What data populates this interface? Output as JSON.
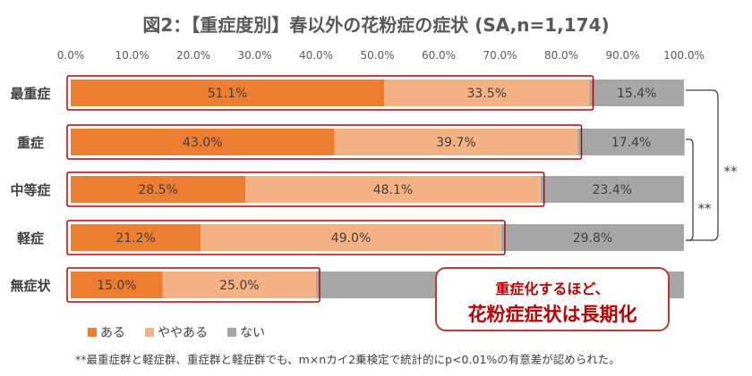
{
  "title": "図2：【重症度別】春以外の花粉症の症状 (SA,n=1,174)",
  "chart_data": {
    "type": "bar",
    "orientation": "horizontal",
    "stacked": true,
    "percent_stacked": true,
    "categories": [
      "最重症",
      "重症",
      "中等症",
      "軽症",
      "無症状"
    ],
    "series": [
      {
        "name": "ある",
        "color": "#ed7d31",
        "values": [
          51.1,
          43.0,
          28.5,
          21.2,
          15.0
        ],
        "labels": [
          "51.1%",
          "43.0%",
          "28.5%",
          "21.2%",
          "15.0%"
        ]
      },
      {
        "name": "ややある",
        "color": "#f4b183",
        "values": [
          33.5,
          39.7,
          48.1,
          49.0,
          25.0
        ],
        "labels": [
          "33.5%",
          "39.7%",
          "48.1%",
          "49.0%",
          "25.0%"
        ]
      },
      {
        "name": "ない",
        "color": "#a6a6a6",
        "values": [
          15.4,
          17.4,
          23.4,
          29.8,
          60.0
        ],
        "labels": [
          "15.4%",
          "17.4%",
          "23.4%",
          "29.8%",
          "60.0%"
        ]
      }
    ],
    "xlim": [
      0,
      100
    ],
    "xticks": [
      "0.0%",
      "10.0%",
      "20.0%",
      "30.0%",
      "40.0%",
      "50.0%",
      "60.0%",
      "70.0%",
      "80.0%",
      "90.0%",
      "100.0%"
    ],
    "highlight_color": "#c00000",
    "significance": [
      {
        "from": "最重症",
        "to": "軽症",
        "label": "**"
      },
      {
        "from": "重症",
        "to": "軽症",
        "label": "**"
      }
    ],
    "legend_position": "bottom-left"
  },
  "callout": {
    "line1": "重症化するほど、",
    "line2": "花粉症症状は長期化"
  },
  "footnote": "**最重症群と軽症群、重症群と軽症群でも、m×nカイ2乗検定で統計的にp<0.01%の有意差が認められた。"
}
